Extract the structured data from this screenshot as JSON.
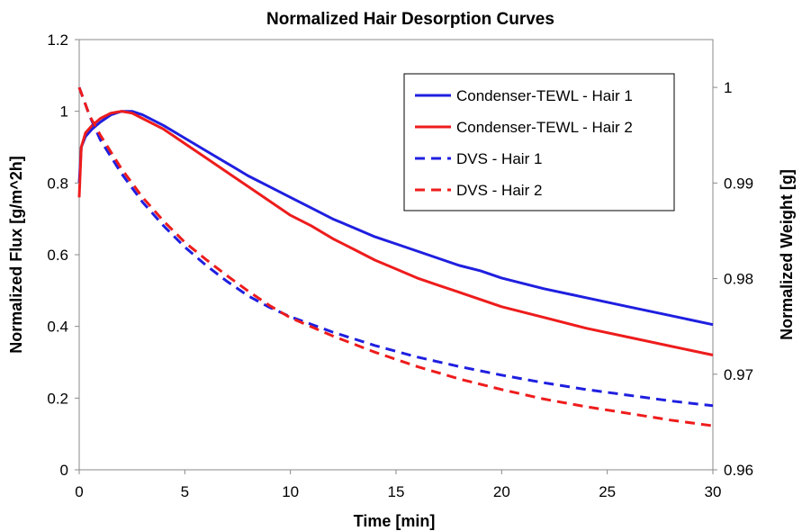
{
  "chart_data": {
    "type": "line",
    "title": "Normalized Hair Desorption Curves",
    "xlabel": "Time [min]",
    "ylabel": "Normalized Flux [g/m^2h]",
    "y2label": "Normalized Weight [g]",
    "xlim": [
      0,
      30
    ],
    "ylim": [
      0,
      1.2
    ],
    "y2lim": [
      0.96,
      1.005
    ],
    "xticks": [
      "0",
      "5",
      "10",
      "15",
      "20",
      "25",
      "30"
    ],
    "yticks": [
      "0",
      "0.2",
      "0.4",
      "0.6",
      "0.8",
      "1",
      "1.2"
    ],
    "y2ticks": [
      "0.96",
      "0.97",
      "0.98",
      "0.99",
      "1"
    ],
    "grid": false,
    "legend_position": "top-right",
    "series": [
      {
        "name": "Condenser-TEWL - Hair 1",
        "axis": "left",
        "style": "solid",
        "color": "#1f1fe0",
        "x": [
          0,
          0.1,
          0.3,
          0.6,
          1,
          1.5,
          2,
          2.5,
          3,
          4,
          5,
          6,
          7,
          8,
          9,
          10,
          11,
          12,
          13,
          14,
          15,
          16,
          17,
          18,
          19,
          20,
          22,
          24,
          26,
          28,
          30
        ],
        "y": [
          0.8,
          0.9,
          0.93,
          0.95,
          0.97,
          0.99,
          1.0,
          1.0,
          0.99,
          0.96,
          0.925,
          0.89,
          0.855,
          0.82,
          0.79,
          0.76,
          0.73,
          0.7,
          0.675,
          0.65,
          0.63,
          0.61,
          0.59,
          0.57,
          0.555,
          0.535,
          0.505,
          0.48,
          0.455,
          0.43,
          0.405
        ]
      },
      {
        "name": "Condenser-TEWL - Hair 2",
        "axis": "left",
        "style": "solid",
        "color": "#ee1c1c",
        "x": [
          0,
          0.1,
          0.3,
          0.6,
          1,
          1.5,
          2,
          2.5,
          3,
          4,
          5,
          6,
          7,
          8,
          9,
          10,
          11,
          12,
          13,
          14,
          15,
          16,
          17,
          18,
          19,
          20,
          22,
          24,
          26,
          28,
          30
        ],
        "y": [
          0.76,
          0.9,
          0.94,
          0.96,
          0.98,
          0.995,
          1.0,
          0.995,
          0.98,
          0.95,
          0.91,
          0.87,
          0.83,
          0.79,
          0.75,
          0.71,
          0.68,
          0.645,
          0.615,
          0.585,
          0.56,
          0.535,
          0.515,
          0.495,
          0.475,
          0.455,
          0.425,
          0.395,
          0.37,
          0.345,
          0.32
        ]
      },
      {
        "name": "DVS - Hair 1",
        "axis": "right",
        "style": "dashed",
        "color": "#1f1fe0",
        "x": [
          0,
          0.5,
          1,
          2,
          3,
          4,
          5,
          6,
          7,
          8,
          9,
          10,
          12,
          14,
          16,
          18,
          20,
          22,
          24,
          26,
          28,
          30
        ],
        "y": [
          1.0,
          0.997,
          0.9945,
          0.991,
          0.988,
          0.9855,
          0.9833,
          0.9814,
          0.9797,
          0.9782,
          0.977,
          0.976,
          0.9744,
          0.973,
          0.9718,
          0.9708,
          0.9699,
          0.9691,
          0.9684,
          0.9678,
          0.9672,
          0.9667
        ]
      },
      {
        "name": "DVS - Hair 2",
        "axis": "right",
        "style": "dashed",
        "color": "#ee1c1c",
        "x": [
          0,
          0.5,
          1,
          2,
          3,
          4,
          5,
          6,
          7,
          8,
          9,
          10,
          12,
          14,
          16,
          18,
          20,
          22,
          24,
          26,
          28,
          30
        ],
        "y": [
          1.0,
          0.997,
          0.995,
          0.9915,
          0.9885,
          0.986,
          0.9838,
          0.982,
          0.9803,
          0.9787,
          0.9772,
          0.9759,
          0.974,
          0.9723,
          0.9708,
          0.9695,
          0.9684,
          0.9674,
          0.9666,
          0.9659,
          0.9652,
          0.9646
        ]
      }
    ]
  }
}
